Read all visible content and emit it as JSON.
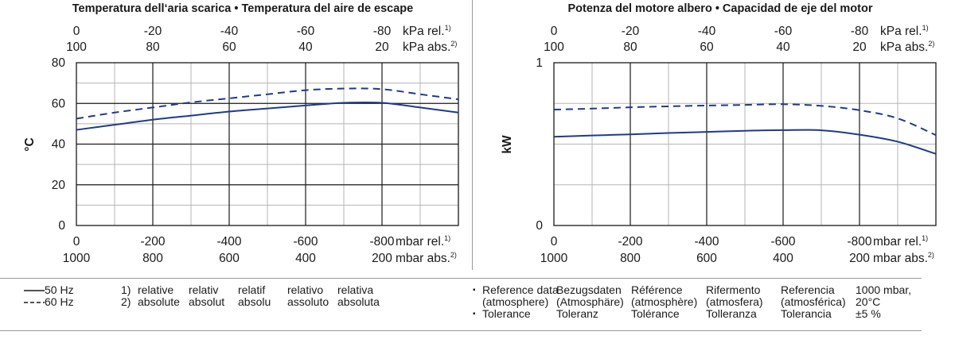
{
  "chart_data": [
    {
      "type": "line",
      "title": "Temperatura dell‘aria scarica • Temperatura del aire de escape",
      "ylabel": "°C",
      "ylim": [
        0,
        80
      ],
      "yticks": [
        "80",
        "60",
        "40",
        "20",
        "0"
      ],
      "xlim": [
        0,
        -1000
      ],
      "x_bottom_rel": {
        "ticks": [
          "0",
          "-200",
          "-400",
          "-600",
          "-800"
        ],
        "unit": "mbar rel.",
        "sup": "1)"
      },
      "x_bottom_abs": {
        "ticks": [
          "1000",
          "800",
          "600",
          "400",
          "200"
        ],
        "unit": "mbar abs.",
        "sup": "2)"
      },
      "x_top_rel": {
        "ticks": [
          "0",
          "-20",
          "-40",
          "-60",
          "-80"
        ],
        "unit": "kPa rel.",
        "sup": "1)"
      },
      "x_top_abs": {
        "ticks": [
          "100",
          "80",
          "60",
          "40",
          "20"
        ],
        "unit": "kPa abs.",
        "sup": "2)"
      },
      "grid": true,
      "x": [
        0,
        -100,
        -200,
        -300,
        -400,
        -500,
        -600,
        -700,
        -800,
        -900,
        -1000
      ],
      "series": [
        {
          "name": "50 Hz",
          "style": "solid",
          "values": [
            47,
            49.5,
            52,
            54,
            56,
            57.5,
            59,
            60.3,
            60.3,
            58,
            55.5
          ]
        },
        {
          "name": "60 Hz",
          "style": "dashed",
          "values": [
            52.5,
            55.5,
            58,
            60.5,
            62.5,
            64.5,
            66.5,
            67.3,
            67,
            64.5,
            62
          ]
        }
      ]
    },
    {
      "type": "line",
      "title": "Potenza del motore albero • Capacidad de eje del motor",
      "ylabel": "kW",
      "ylim": [
        0,
        1
      ],
      "yticks": [
        "1",
        "0"
      ],
      "xlim": [
        0,
        -1000
      ],
      "x_bottom_rel": {
        "ticks": [
          "0",
          "-200",
          "-400",
          "-600",
          "-800"
        ],
        "unit": "mbar rel.",
        "sup": "1)"
      },
      "x_bottom_abs": {
        "ticks": [
          "1000",
          "800",
          "600",
          "400",
          "200"
        ],
        "unit": "mbar abs.",
        "sup": "2)"
      },
      "x_top_rel": {
        "ticks": [
          "0",
          "-20",
          "-40",
          "-60",
          "-80"
        ],
        "unit": "kPa rel.",
        "sup": "1)"
      },
      "x_top_abs": {
        "ticks": [
          "100",
          "80",
          "60",
          "40",
          "20"
        ],
        "unit": "kPa abs.",
        "sup": "2)"
      },
      "grid": true,
      "x": [
        0,
        -100,
        -200,
        -300,
        -400,
        -500,
        -600,
        -700,
        -800,
        -900,
        -1000
      ],
      "series": [
        {
          "name": "50 Hz",
          "style": "solid",
          "values": [
            0.545,
            0.553,
            0.56,
            0.568,
            0.575,
            0.582,
            0.586,
            0.585,
            0.558,
            0.515,
            0.44
          ]
        },
        {
          "name": "60 Hz",
          "style": "dashed",
          "values": [
            0.712,
            0.718,
            0.726,
            0.732,
            0.737,
            0.741,
            0.745,
            0.735,
            0.708,
            0.658,
            0.555
          ]
        }
      ]
    }
  ],
  "legend": {
    "line1": "50 Hz",
    "line2": "60 Hz"
  },
  "footnotes": {
    "markers": [
      "1)",
      "2)"
    ],
    "columns": [
      [
        "relative",
        "absolute"
      ],
      [
        "relativ",
        "absolut"
      ],
      [
        "relatif",
        "absolu"
      ],
      [
        "relativo",
        "assoluto"
      ],
      [
        "relativa",
        "absoluta"
      ]
    ]
  },
  "reference": {
    "bullet": "▪",
    "label_col": [
      "Reference data",
      "(atmosphere)",
      "Tolerance"
    ],
    "columns": [
      [
        "Bezugsdaten",
        "(Atmosphäre)",
        "Toleranz"
      ],
      [
        "Référence",
        "(atmosphère)",
        "Tolérance"
      ],
      [
        "Rifermento",
        "(atmosfera)",
        "Tolleranza"
      ],
      [
        "Referencia",
        "(atmosférica)",
        "Tolerancia"
      ],
      [
        "1000 mbar,",
        "20°C",
        "±5 %"
      ]
    ]
  },
  "colors": {
    "series": "#1f3a8a",
    "grid_major": "#1a1a1a",
    "grid_minor": "#b5b5b5",
    "rule": "#9a9a9a"
  }
}
